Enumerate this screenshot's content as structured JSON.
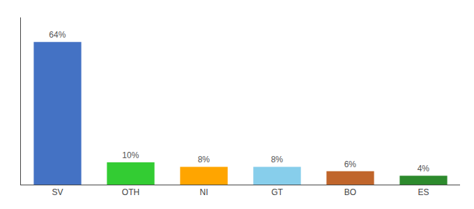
{
  "chart_data": {
    "type": "bar",
    "categories": [
      "SV",
      "OTH",
      "NI",
      "GT",
      "BO",
      "ES"
    ],
    "values": [
      64,
      10,
      8,
      8,
      6,
      4
    ],
    "value_labels": [
      "64%",
      "10%",
      "8%",
      "8%",
      "6%",
      "4%"
    ],
    "colors": [
      "#4472C4",
      "#33CC33",
      "#FFA500",
      "#87CEEB",
      "#C0652B",
      "#2D8A2D"
    ],
    "ylim": [
      0,
      75
    ],
    "data_labels": true,
    "tick_labels": "x",
    "grid": false
  }
}
